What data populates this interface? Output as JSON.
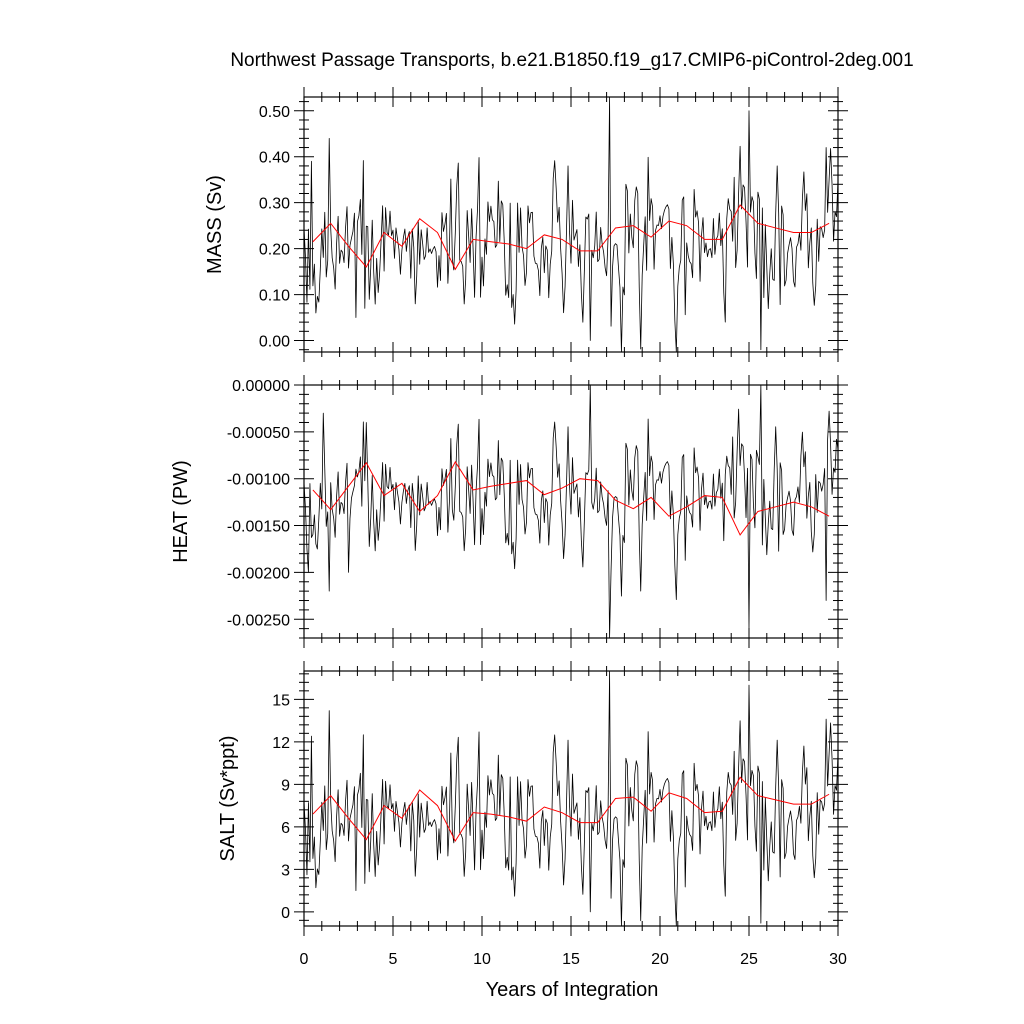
{
  "chart_data": {
    "type": "line",
    "title": "Northwest Passage Transports, b.e21.B1850.f19_g17.CMIP6-piControl-2deg.001",
    "xlabel": "Years of Integration",
    "xlim": [
      0,
      30
    ],
    "x_ticks": [
      "0",
      "5",
      "10",
      "15",
      "20",
      "25",
      "30"
    ],
    "line_colors": {
      "monthly": "#000000",
      "annual": "#ff0000"
    },
    "panels": [
      {
        "ylabel": "MASS (Sv)",
        "ylim": [
          -0.025,
          0.53
        ],
        "y_ticks": [
          "0.00",
          "0.10",
          "0.20",
          "0.30",
          "0.40",
          "0.50"
        ],
        "annual_x": [
          0.5,
          1.5,
          2.5,
          3.5,
          4.5,
          5.5,
          6.5,
          7.5,
          8.5,
          9.5,
          10.5,
          11.5,
          12.5,
          13.5,
          14.5,
          15.5,
          16.5,
          17.5,
          18.5,
          19.5,
          20.5,
          21.5,
          22.5,
          23.5,
          24.5,
          25.5,
          26.5,
          27.5,
          28.5,
          29.5
        ],
        "annual_y": [
          0.215,
          0.255,
          0.205,
          0.16,
          0.235,
          0.205,
          0.265,
          0.235,
          0.155,
          0.22,
          0.215,
          0.21,
          0.2,
          0.23,
          0.22,
          0.195,
          0.195,
          0.245,
          0.25,
          0.225,
          0.26,
          0.25,
          0.22,
          0.22,
          0.295,
          0.255,
          0.245,
          0.235,
          0.235,
          0.255
        ],
        "monthly_mean": 0.22,
        "monthly_spread": 0.075,
        "monthly_extremes": [
          {
            "x": 0.4,
            "y": 0.39
          },
          {
            "x": 0.7,
            "y": 0.06
          },
          {
            "x": 1.4,
            "y": 0.44
          },
          {
            "x": 2.9,
            "y": 0.05
          },
          {
            "x": 3.4,
            "y": 0.07
          },
          {
            "x": 16.05,
            "y": 0.0
          },
          {
            "x": 17.2,
            "y": 0.53
          },
          {
            "x": 23.7,
            "y": 0.04
          },
          {
            "x": 25.0,
            "y": 0.5
          },
          {
            "x": 25.7,
            "y": -0.02
          },
          {
            "x": 29.3,
            "y": 0.42
          }
        ]
      },
      {
        "ylabel": "HEAT (PW)",
        "ylim": [
          -0.0027,
          0.0
        ],
        "y_ticks": [
          "0.00000",
          "-0.00050",
          "-0.00100",
          "-0.00150",
          "-0.00200",
          "-0.00250"
        ],
        "annual_x": [
          0.5,
          1.5,
          2.5,
          3.5,
          4.5,
          5.5,
          6.5,
          7.5,
          8.5,
          9.5,
          10.5,
          11.5,
          12.5,
          13.5,
          14.5,
          15.5,
          16.5,
          17.5,
          18.5,
          19.5,
          20.5,
          21.5,
          22.5,
          23.5,
          24.5,
          25.5,
          26.5,
          27.5,
          28.5,
          29.5
        ],
        "annual_y": [
          -0.00112,
          -0.00133,
          -0.00108,
          -0.00083,
          -0.00118,
          -0.00105,
          -0.00135,
          -0.00118,
          -0.00082,
          -0.00112,
          -0.00108,
          -0.00105,
          -0.00102,
          -0.00117,
          -0.0011,
          -0.001,
          -0.00102,
          -0.00123,
          -0.00132,
          -0.0012,
          -0.0014,
          -0.0013,
          -0.00118,
          -0.0012,
          -0.0016,
          -0.00135,
          -0.0013,
          -0.00125,
          -0.0013,
          -0.0014
        ],
        "monthly_mean": -0.00115,
        "monthly_spread": 0.00033,
        "monthly_extremes": [
          {
            "x": 0.25,
            "y": -0.002
          },
          {
            "x": 1.05,
            "y": -0.0003
          },
          {
            "x": 1.4,
            "y": -0.0022
          },
          {
            "x": 2.5,
            "y": -0.002
          },
          {
            "x": 3.5,
            "y": -0.0004
          },
          {
            "x": 16.05,
            "y": 0.0
          },
          {
            "x": 17.2,
            "y": -0.0027
          },
          {
            "x": 25.0,
            "y": -0.0026
          },
          {
            "x": 25.7,
            "y": 0.0
          },
          {
            "x": 29.3,
            "y": -0.0023
          }
        ]
      },
      {
        "ylabel": "SALT (Sv*ppt)",
        "ylim": [
          -1,
          17
        ],
        "y_ticks": [
          "0",
          "3",
          "6",
          "9",
          "12",
          "15"
        ],
        "annual_x": [
          0.5,
          1.5,
          2.5,
          3.5,
          4.5,
          5.5,
          6.5,
          7.5,
          8.5,
          9.5,
          10.5,
          11.5,
          12.5,
          13.5,
          14.5,
          15.5,
          16.5,
          17.5,
          18.5,
          19.5,
          20.5,
          21.5,
          22.5,
          23.5,
          24.5,
          25.5,
          26.5,
          27.5,
          28.5,
          29.5
        ],
        "annual_y": [
          6.9,
          8.2,
          6.6,
          5.1,
          7.5,
          6.6,
          8.6,
          7.5,
          5.0,
          7.0,
          6.9,
          6.7,
          6.4,
          7.4,
          7.0,
          6.3,
          6.3,
          8.0,
          8.1,
          7.1,
          8.4,
          8.0,
          7.0,
          7.1,
          9.5,
          8.2,
          7.9,
          7.6,
          7.6,
          8.3
        ],
        "monthly_mean": 7.0,
        "monthly_spread": 2.4,
        "monthly_extremes": [
          {
            "x": 0.4,
            "y": 12.4
          },
          {
            "x": 0.7,
            "y": 1.7
          },
          {
            "x": 1.4,
            "y": 14.2
          },
          {
            "x": 2.9,
            "y": 1.5
          },
          {
            "x": 3.4,
            "y": 2.0
          },
          {
            "x": 16.05,
            "y": 0.0
          },
          {
            "x": 17.2,
            "y": 17.0
          },
          {
            "x": 23.7,
            "y": 1.1
          },
          {
            "x": 25.0,
            "y": 16.0
          },
          {
            "x": 25.7,
            "y": -0.8
          },
          {
            "x": 29.3,
            "y": 13.6
          }
        ]
      }
    ]
  }
}
